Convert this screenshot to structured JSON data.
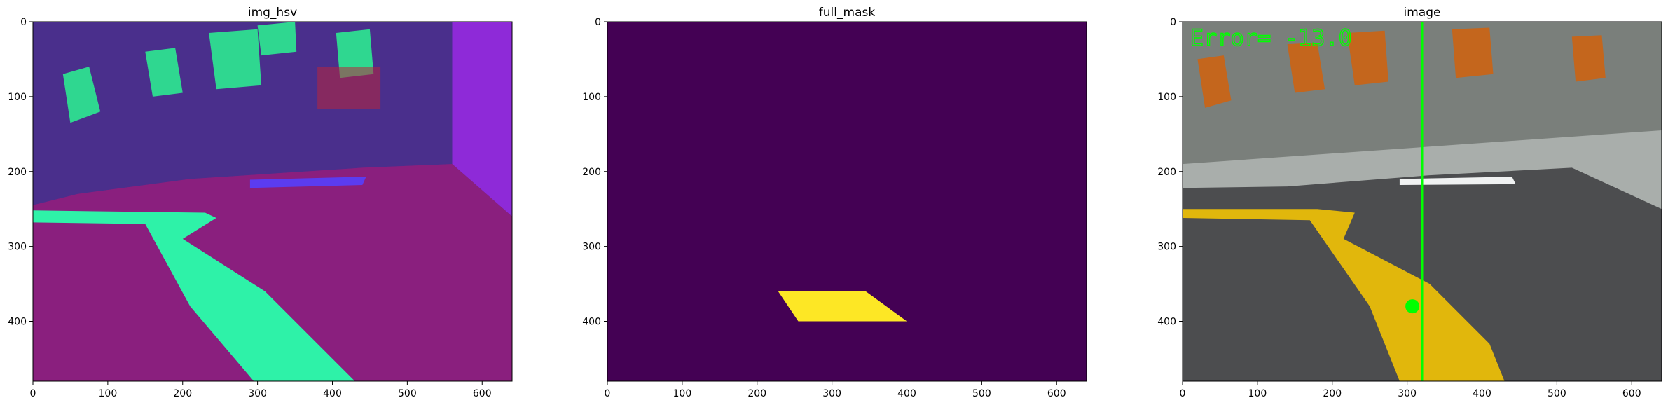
{
  "figure": {
    "colors": {
      "hsv_floor": "#8a1f7e",
      "hsv_floor_dark": "#6d1b6a",
      "hsv_wall": "#4a2f8c",
      "hsv_wall_far": "#8e2ad8",
      "hsv_tape": "#2ef2a8",
      "hsv_chair": "#2fd790",
      "hsv_marker": "#5b3cf0",
      "mask_bg": "#440154",
      "mask_fg": "#fde725",
      "img_wall": "#7a7f7b",
      "img_floor": "#a9aeab",
      "img_mat": "#4c4d4f",
      "img_tape": "#e1b70c",
      "img_chair": "#c4661d",
      "img_marker": "#f0f2f2",
      "overlay_green": "#00ff00"
    }
  },
  "chart_data": [
    {
      "type": "image",
      "title": "img_hsv",
      "xlim": [
        0,
        640
      ],
      "ylim": [
        480,
        0
      ],
      "xticks": [
        0,
        100,
        200,
        300,
        400,
        500,
        600
      ],
      "yticks": [
        0,
        100,
        200,
        300,
        400
      ],
      "regions": {
        "floor_boundary": [
          [
            0,
            245
          ],
          [
            60,
            230
          ],
          [
            210,
            210
          ],
          [
            440,
            195
          ],
          [
            560,
            190
          ],
          [
            640,
            260
          ]
        ],
        "tape": [
          [
            0,
            252
          ],
          [
            230,
            255
          ],
          [
            245,
            262
          ],
          [
            200,
            290
          ],
          [
            310,
            360
          ],
          [
            430,
            480
          ],
          [
            295,
            480
          ],
          [
            210,
            380
          ],
          [
            150,
            270
          ],
          [
            0,
            268
          ]
        ],
        "marker": [
          [
            290,
            211
          ],
          [
            445,
            207
          ],
          [
            440,
            218
          ],
          [
            290,
            222
          ]
        ]
      }
    },
    {
      "type": "image",
      "title": "full_mask",
      "xlim": [
        0,
        640
      ],
      "ylim": [
        480,
        0
      ],
      "xticks": [
        0,
        100,
        200,
        300,
        400,
        500,
        600
      ],
      "yticks": [
        0,
        100,
        200,
        300,
        400
      ],
      "regions": {
        "mask_polygon": [
          [
            228,
            360
          ],
          [
            345,
            360
          ],
          [
            400,
            400
          ],
          [
            255,
            400
          ]
        ]
      }
    },
    {
      "type": "image",
      "title": "image",
      "xlim": [
        0,
        640
      ],
      "ylim": [
        480,
        0
      ],
      "xticks": [
        0,
        100,
        200,
        300,
        400,
        500,
        600
      ],
      "yticks": [
        0,
        100,
        200,
        300,
        400
      ],
      "overlay_text": "Error= -13.0",
      "center_line_x": 320,
      "centroid": [
        307,
        380
      ],
      "regions": {
        "floor_boundary": [
          [
            0,
            190
          ],
          [
            640,
            145
          ]
        ],
        "mat": [
          [
            0,
            222
          ],
          [
            140,
            220
          ],
          [
            330,
            205
          ],
          [
            520,
            195
          ],
          [
            640,
            250
          ],
          [
            640,
            480
          ],
          [
            0,
            480
          ]
        ],
        "tape": [
          [
            0,
            250
          ],
          [
            180,
            250
          ],
          [
            230,
            255
          ],
          [
            215,
            290
          ],
          [
            330,
            350
          ],
          [
            410,
            430
          ],
          [
            430,
            480
          ],
          [
            290,
            480
          ],
          [
            250,
            380
          ],
          [
            170,
            265
          ],
          [
            0,
            262
          ]
        ],
        "marker": [
          [
            290,
            210
          ],
          [
            440,
            207
          ],
          [
            445,
            217
          ],
          [
            290,
            218
          ]
        ]
      }
    }
  ]
}
